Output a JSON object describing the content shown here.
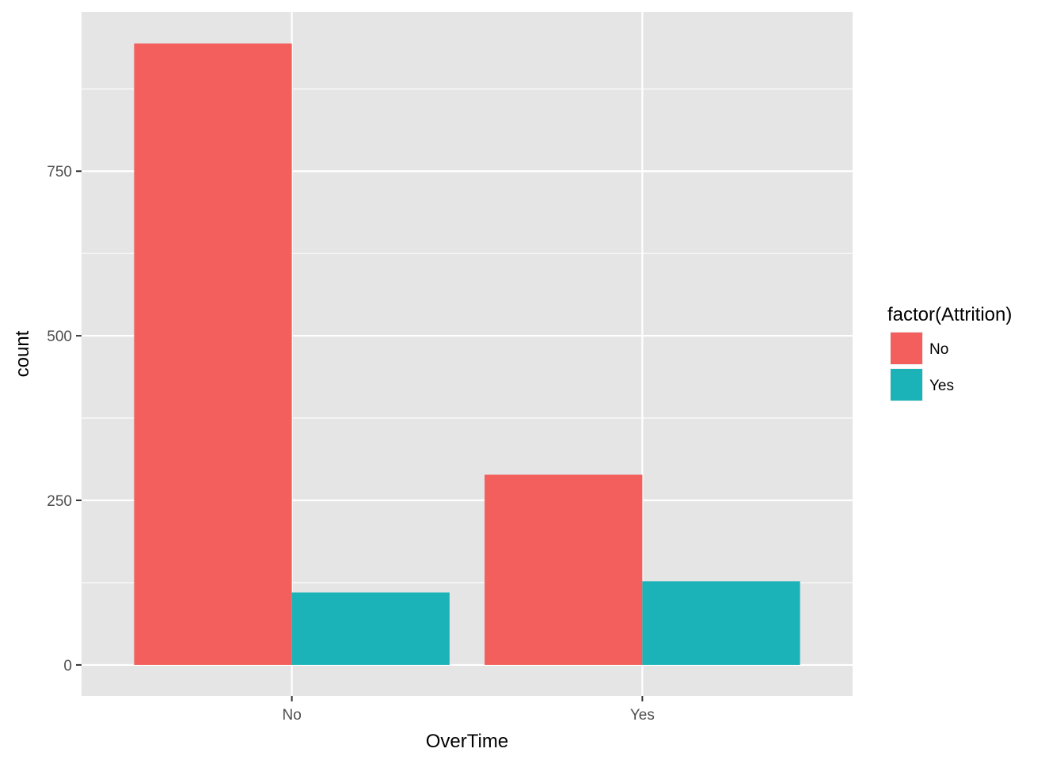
{
  "chart_data": {
    "type": "bar",
    "position": "dodge",
    "title": "",
    "xlabel": "OverTime",
    "ylabel": "count",
    "categories": [
      "No",
      "Yes"
    ],
    "series": [
      {
        "name": "No",
        "values": [
          944,
          289
        ],
        "color": "#f25f5c"
      },
      {
        "name": "Yes",
        "values": [
          110,
          127
        ],
        "color": "#1bb3b8"
      }
    ],
    "ylim": [
      -47,
      992
    ],
    "yticks": [
      0,
      250,
      500,
      750
    ],
    "ytick_labels": [
      "0",
      "250",
      "500",
      "750"
    ],
    "grid": true,
    "panel_background": "#e5e5e5",
    "grid_color": "#ffffff",
    "legend": {
      "title": "factor(Attrition)",
      "placement": "right",
      "entries": [
        "No",
        "Yes"
      ]
    }
  }
}
